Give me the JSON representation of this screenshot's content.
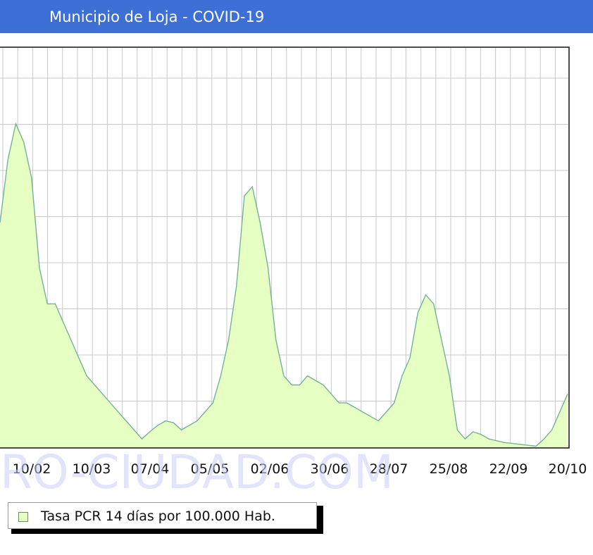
{
  "header": {
    "title": "Municipio de Loja - COVID-19",
    "background_color": "#3d6fd6"
  },
  "watermark": {
    "text": "RO-CIUDAD.COM"
  },
  "legend": {
    "label": "Tasa PCR 14 días por 100.000 Hab."
  },
  "chart_data": {
    "type": "area",
    "title": "",
    "xlabel": "",
    "ylabel": "",
    "grid": true,
    "fill_color": "#e6ffc2",
    "line_color": "#77b09a",
    "x_tick_labels": [
      "10/02",
      "10/03",
      "07/04",
      "05/05",
      "02/06",
      "30/06",
      "28/07",
      "25/08",
      "22/09",
      "20/10"
    ],
    "series": [
      {
        "name": "Tasa PCR 14 días por 100.000 Hab.",
        "values": [
          2.5,
          3.2,
          3.6,
          3.4,
          3.0,
          2.0,
          1.6,
          1.6,
          1.4,
          1.2,
          1.0,
          0.8,
          0.7,
          0.6,
          0.5,
          0.4,
          0.3,
          0.2,
          0.1,
          0.18,
          0.25,
          0.3,
          0.28,
          0.2,
          0.25,
          0.3,
          0.4,
          0.5,
          0.8,
          1.2,
          1.8,
          2.8,
          2.9,
          2.5,
          2.0,
          1.2,
          0.8,
          0.7,
          0.7,
          0.8,
          0.75,
          0.7,
          0.6,
          0.5,
          0.5,
          0.45,
          0.4,
          0.35,
          0.3,
          0.4,
          0.5,
          0.8,
          1.0,
          1.5,
          1.7,
          1.6,
          1.2,
          0.8,
          0.2,
          0.1,
          0.18,
          0.15,
          0.1,
          0.08,
          0.06,
          0.05,
          0.04,
          0.03,
          0.02,
          0.1,
          0.2,
          0.4,
          0.6
        ]
      }
    ]
  }
}
